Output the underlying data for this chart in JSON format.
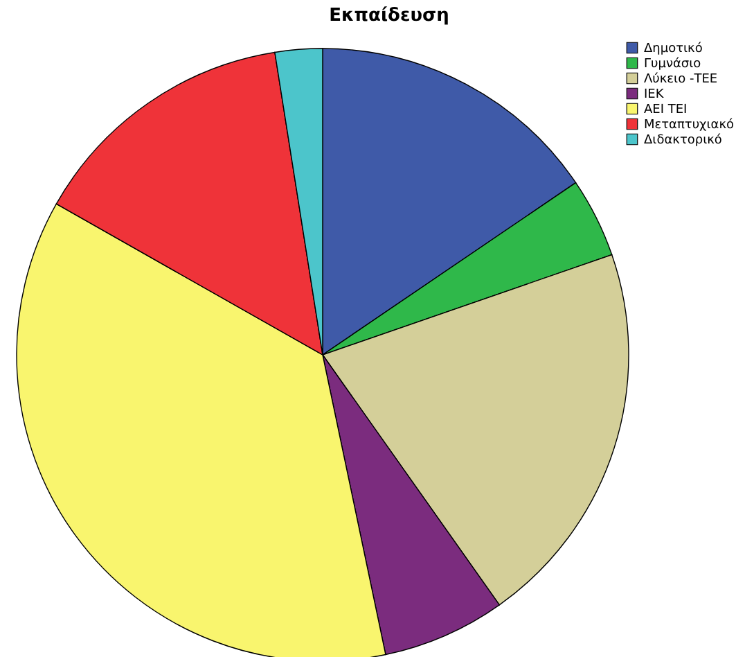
{
  "chart_data": {
    "type": "pie",
    "title": "Εκπαίδευση",
    "categories": [
      "Δημοτικό",
      "Γυμνάσιο",
      "Λύκειο -ΤΕΕ",
      "ΙΕΚ",
      "ΑΕΙ ΤΕΙ",
      "Μεταπτυχιακό",
      "Διδακτορικό"
    ],
    "values": [
      15.5,
      4.2,
      20.5,
      6.5,
      36.5,
      14.3,
      2.5
    ],
    "colors": [
      "#3f5aa8",
      "#2fb84a",
      "#d4cf99",
      "#7b2c7e",
      "#f9f56e",
      "#ef3339",
      "#4cc5cb"
    ],
    "legend": "top right"
  }
}
